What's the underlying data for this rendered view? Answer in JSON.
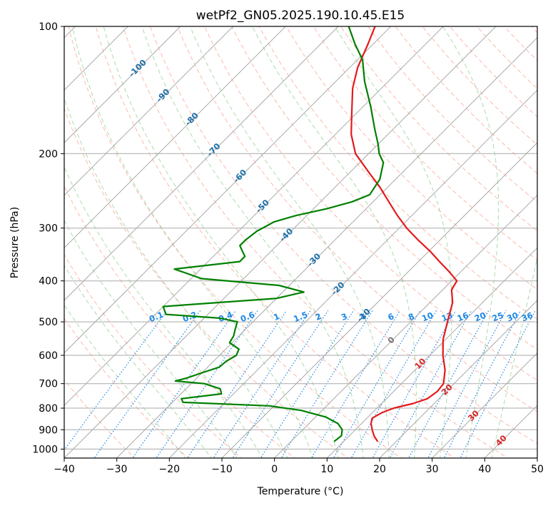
{
  "chart_data": {
    "type": "line",
    "subtype": "skew-T log-P diagram",
    "title": "wetPf2_GN05.2025.190.10.45.E15",
    "xlabel": "Temperature (°C)",
    "ylabel": "Pressure (hPa)",
    "xlim": [
      -40,
      50
    ],
    "ylim": [
      1050,
      100
    ],
    "y_scale": "log",
    "grid": true,
    "x_ticks": [
      -40,
      -30,
      -20,
      -10,
      0,
      10,
      20,
      30,
      40,
      50
    ],
    "x_tick_labels": [
      "−40",
      "−30",
      "−20",
      "−10",
      "0",
      "10",
      "20",
      "30",
      "40",
      "50"
    ],
    "y_ticks": [
      1000,
      900,
      800,
      700,
      600,
      500,
      400,
      300,
      200,
      100
    ],
    "y_tick_labels": [
      "1000",
      "900",
      "800",
      "700",
      "600",
      "500",
      "400",
      "300",
      "200",
      "100"
    ],
    "series": [
      {
        "role": "temperature",
        "color": "#e41a1c",
        "points": [
          {
            "p": 960,
            "t": 16.5
          },
          {
            "p": 930,
            "t": 14.7
          },
          {
            "p": 900,
            "t": 13.2
          },
          {
            "p": 870,
            "t": 11.8
          },
          {
            "p": 845,
            "t": 11.0
          },
          {
            "p": 820,
            "t": 11.8
          },
          {
            "p": 800,
            "t": 13.2
          },
          {
            "p": 780,
            "t": 16.0
          },
          {
            "p": 760,
            "t": 17.8
          },
          {
            "p": 730,
            "t": 18.3
          },
          {
            "p": 700,
            "t": 18.0
          },
          {
            "p": 650,
            "t": 15.7
          },
          {
            "p": 600,
            "t": 12.5
          },
          {
            "p": 550,
            "t": 9.5
          },
          {
            "p": 500,
            "t": 7.0
          },
          {
            "p": 450,
            "t": 4.3
          },
          {
            "p": 420,
            "t": 1.7
          },
          {
            "p": 400,
            "t": 1.0
          },
          {
            "p": 380,
            "t": -2.3
          },
          {
            "p": 360,
            "t": -6.0
          },
          {
            "p": 340,
            "t": -9.8
          },
          {
            "p": 320,
            "t": -14.2
          },
          {
            "p": 300,
            "t": -18.6
          },
          {
            "p": 280,
            "t": -22.8
          },
          {
            "p": 260,
            "t": -27.0
          },
          {
            "p": 240,
            "t": -31.5
          },
          {
            "p": 220,
            "t": -36.8
          },
          {
            "p": 200,
            "t": -42.5
          },
          {
            "p": 180,
            "t": -47.0
          },
          {
            "p": 160,
            "t": -51.0
          },
          {
            "p": 140,
            "t": -55.5
          },
          {
            "p": 125,
            "t": -58.5
          },
          {
            "p": 110,
            "t": -61.0
          },
          {
            "p": 100,
            "t": -63.0
          }
        ]
      },
      {
        "role": "dewpoint",
        "color": "#008000",
        "points": [
          {
            "p": 960,
            "t": 8.2
          },
          {
            "p": 930,
            "t": 8.5
          },
          {
            "p": 900,
            "t": 7.5
          },
          {
            "p": 870,
            "t": 5.5
          },
          {
            "p": 840,
            "t": 2.0
          },
          {
            "p": 810,
            "t": -4.0
          },
          {
            "p": 790,
            "t": -11.0
          },
          {
            "p": 775,
            "t": -28.0
          },
          {
            "p": 760,
            "t": -29.0
          },
          {
            "p": 740,
            "t": -22.3
          },
          {
            "p": 720,
            "t": -23.5
          },
          {
            "p": 700,
            "t": -27.5
          },
          {
            "p": 690,
            "t": -33.5
          },
          {
            "p": 680,
            "t": -32.0
          },
          {
            "p": 660,
            "t": -30.0
          },
          {
            "p": 640,
            "t": -27.8
          },
          {
            "p": 620,
            "t": -27.6
          },
          {
            "p": 600,
            "t": -26.8
          },
          {
            "p": 580,
            "t": -27.5
          },
          {
            "p": 560,
            "t": -30.5
          },
          {
            "p": 540,
            "t": -31.0
          },
          {
            "p": 520,
            "t": -32.0
          },
          {
            "p": 500,
            "t": -33.0
          },
          {
            "p": 490,
            "t": -37.0
          },
          {
            "p": 480,
            "t": -48.0
          },
          {
            "p": 460,
            "t": -50.0
          },
          {
            "p": 440,
            "t": -30.0
          },
          {
            "p": 425,
            "t": -26.0
          },
          {
            "p": 410,
            "t": -32.0
          },
          {
            "p": 395,
            "t": -48.0
          },
          {
            "p": 375,
            "t": -55.0
          },
          {
            "p": 360,
            "t": -44.0
          },
          {
            "p": 350,
            "t": -44.0
          },
          {
            "p": 340,
            "t": -45.5
          },
          {
            "p": 330,
            "t": -47.0
          },
          {
            "p": 320,
            "t": -47.0
          },
          {
            "p": 305,
            "t": -46.5
          },
          {
            "p": 290,
            "t": -45.0
          },
          {
            "p": 280,
            "t": -42.0
          },
          {
            "p": 270,
            "t": -37.5
          },
          {
            "p": 260,
            "t": -34.0
          },
          {
            "p": 250,
            "t": -32.0
          },
          {
            "p": 230,
            "t": -33.0
          },
          {
            "p": 210,
            "t": -35.5
          },
          {
            "p": 200,
            "t": -38.0
          },
          {
            "p": 190,
            "t": -40.0
          },
          {
            "p": 175,
            "t": -43.5
          },
          {
            "p": 155,
            "t": -48.5
          },
          {
            "p": 135,
            "t": -54.5
          },
          {
            "p": 120,
            "t": -59.0
          },
          {
            "p": 110,
            "t": -63.5
          },
          {
            "p": 100,
            "t": -68.0
          }
        ]
      }
    ],
    "isotherms": [
      -100,
      -90,
      -80,
      -70,
      -60,
      -50,
      -40,
      -30,
      -20,
      -10,
      0,
      10,
      20,
      30,
      40,
      50
    ],
    "isotherm_labels": [
      {
        "text": "-100",
        "t": -100
      },
      {
        "text": "-90",
        "t": -90
      },
      {
        "text": "-80",
        "t": -80
      },
      {
        "text": "-70",
        "t": -70
      },
      {
        "text": "-60",
        "t": -60
      },
      {
        "text": "-50",
        "t": -50
      },
      {
        "text": "-40",
        "t": -40
      },
      {
        "text": "-30",
        "t": -30
      },
      {
        "text": "-20",
        "t": -20
      },
      {
        "text": "-10",
        "t": -10
      },
      {
        "text": "0",
        "t": 0
      },
      {
        "text": "10",
        "t": 10
      },
      {
        "text": "20",
        "t": 20
      },
      {
        "text": "30",
        "t": 30
      },
      {
        "text": "40",
        "t": 40
      }
    ],
    "mixing_ratio_lines_gkg": [
      0.1,
      0.2,
      0.4,
      0.6,
      1,
      1.5,
      2,
      3,
      4,
      6,
      8,
      10,
      13,
      16,
      20,
      25,
      30,
      36
    ],
    "mixing_ratio_labels": [
      "0.1",
      "0.2",
      "0.4",
      "0.6",
      "1",
      "1.5",
      "2",
      "3",
      "4",
      "6",
      "8",
      "10",
      "13",
      "16",
      "20",
      "25",
      "30",
      "36"
    ],
    "colors": {
      "temperature": "#e41a1c",
      "dewpoint": "#008000",
      "isotherm_label_cold": "#1f6fa8",
      "isotherm_label_zero": "#777777",
      "isotherm_label_warm": "#d62728",
      "mixing_ratio": "#1e88e5",
      "dry_adiabat": "#fa8066",
      "moist_adiabat": "#8fcf8f",
      "grid": "#aaaaaa"
    }
  }
}
